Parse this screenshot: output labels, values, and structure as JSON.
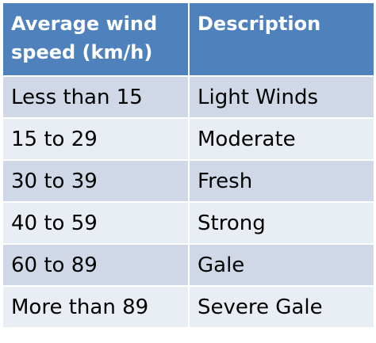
{
  "table": {
    "headers": [
      "Average wind speed (km/h)",
      "Description"
    ],
    "rows": [
      [
        "Less than 15",
        "Light Winds"
      ],
      [
        "15 to 29",
        "Moderate"
      ],
      [
        "30 to 39",
        "Fresh"
      ],
      [
        "40 to 59",
        "Strong"
      ],
      [
        "60 to 89",
        "Gale"
      ],
      [
        "More than 89",
        "Severe Gale"
      ]
    ]
  },
  "colors": {
    "header_bg": "#4f81bd",
    "row_odd_bg": "#d0d8e8",
    "row_even_bg": "#e9edf4",
    "header_text": "#ffffff",
    "body_text": "#000000"
  }
}
